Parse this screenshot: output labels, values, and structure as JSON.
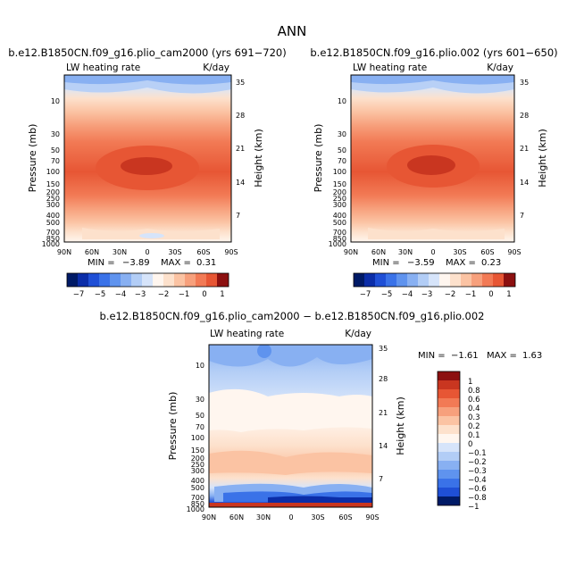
{
  "page_title": "ANN",
  "colors": {
    "neg": [
      "#001a66",
      "#0b2da8",
      "#1f4fd6",
      "#3a72e8",
      "#5f93ee",
      "#88b0f2",
      "#b2cdf6",
      "#d6e4fa"
    ],
    "pos": [
      "#fff6ef",
      "#fde1cc",
      "#fbc3a3",
      "#f7a07c",
      "#f27a55",
      "#e75634",
      "#c93620",
      "#8c1010"
    ]
  },
  "chart_data": [
    {
      "id": "panel1",
      "type": "contour",
      "title": "b.e12.B1850CN.f09_g16.plio_cam2000 (yrs 691−720)",
      "variable_label": "LW heating rate",
      "units": "K/day",
      "xlabel": "",
      "ylabel": "Pressure (mb)",
      "y2label": "Height (km)",
      "x_ticks": [
        "90N",
        "60N",
        "30N",
        "0",
        "30S",
        "60S",
        "90S"
      ],
      "y_ticks": [
        "10",
        "30",
        "50",
        "70",
        "100",
        "150",
        "200",
        "250",
        "300",
        "400",
        "500",
        "700",
        "850",
        "1000"
      ],
      "y2_ticks": [
        "35",
        "28",
        "21",
        "14",
        "7"
      ],
      "min_label": "MIN = ",
      "min_value": "−3.89",
      "max_label": "MAX = ",
      "max_value": "0.31",
      "colorbar": {
        "levels": [
          "−7",
          "−6",
          "−5",
          "−4",
          "−3",
          "−2",
          "−1",
          "0",
          "1"
        ],
        "labels": [
          "−7",
          "−5",
          "−4",
          "−3",
          "−2",
          "−1",
          "0",
          "1"
        ]
      }
    },
    {
      "id": "panel2",
      "type": "contour",
      "title": "b.e12.B1850CN.f09_g16.plio.002 (yrs 601−650)",
      "variable_label": "LW heating rate",
      "units": "K/day",
      "xlabel": "",
      "ylabel": "Pressure (mb)",
      "y2label": "Height (km)",
      "x_ticks": [
        "90N",
        "60N",
        "30N",
        "0",
        "30S",
        "60S",
        "90S"
      ],
      "y_ticks": [
        "10",
        "30",
        "50",
        "70",
        "100",
        "150",
        "200",
        "250",
        "300",
        "400",
        "500",
        "700",
        "850",
        "1000"
      ],
      "y2_ticks": [
        "35",
        "28",
        "21",
        "14",
        "7"
      ],
      "min_label": "MIN = ",
      "min_value": "−3.59",
      "max_label": "MAX = ",
      "max_value": "0.23",
      "colorbar": {
        "levels": [
          "−7",
          "−6",
          "−5",
          "−4",
          "−3",
          "−2",
          "−1",
          "0",
          "1"
        ],
        "labels": [
          "−7",
          "−5",
          "−4",
          "−3",
          "−2",
          "−1",
          "0",
          "1"
        ]
      }
    },
    {
      "id": "panel3",
      "type": "contour",
      "title": "b.e12.B1850CN.f09_g16.plio_cam2000 − b.e12.B1850CN.f09_g16.plio.002",
      "variable_label": "LW heating rate",
      "units": "K/day",
      "xlabel": "",
      "ylabel": "Pressure (mb)",
      "y2label": "Height (km)",
      "x_ticks": [
        "90N",
        "60N",
        "30N",
        "0",
        "30S",
        "60S",
        "90S"
      ],
      "y_ticks": [
        "10",
        "30",
        "50",
        "70",
        "100",
        "150",
        "200",
        "250",
        "300",
        "400",
        "500",
        "700",
        "850",
        "1000"
      ],
      "y2_ticks": [
        "35",
        "28",
        "21",
        "14",
        "7"
      ],
      "min_label": "MIN = ",
      "min_value": "−1.61",
      "max_label": "MAX = ",
      "max_value": "1.63",
      "colorbar": {
        "labels": [
          "1",
          "0.8",
          "0.6",
          "0.4",
          "0.3",
          "0.2",
          "0.1",
          "0",
          "−0.1",
          "−0.2",
          "−0.3",
          "−0.4",
          "−0.6",
          "−0.8",
          "−1"
        ]
      }
    }
  ]
}
